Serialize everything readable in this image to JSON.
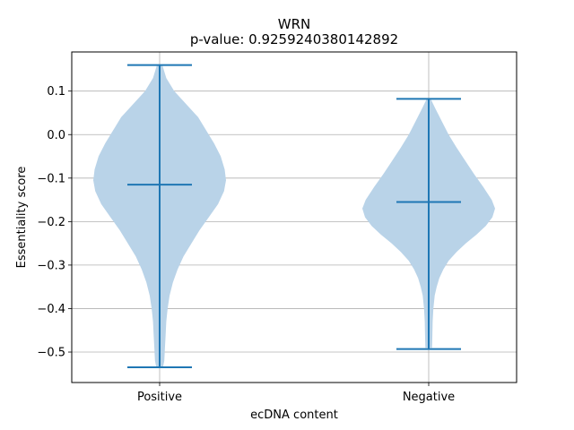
{
  "chart_data": {
    "type": "violin",
    "title": "WRN",
    "subtitle": "p-value: 0.9259240380142892",
    "xlabel": "ecDNA content",
    "ylabel": "Essentiality score",
    "categories": [
      "Positive",
      "Negative"
    ],
    "ylim": [
      -0.57,
      0.19
    ],
    "yticks": [
      0.1,
      0.0,
      -0.1,
      -0.2,
      -0.3,
      -0.4,
      -0.5
    ],
    "ytick_labels": [
      "0.1",
      "0.0",
      "−0.1",
      "−0.2",
      "−0.3",
      "−0.4",
      "−0.5"
    ],
    "grid": true,
    "colors": {
      "body": "#b9d3e8",
      "line": "#1f77b4"
    },
    "series": [
      {
        "category": "Positive",
        "max": 0.16,
        "median": -0.115,
        "min": -0.535,
        "density": [
          [
            0.16,
            0.04
          ],
          [
            0.13,
            0.1
          ],
          [
            0.1,
            0.22
          ],
          [
            0.07,
            0.4
          ],
          [
            0.04,
            0.58
          ],
          [
            0.01,
            0.7
          ],
          [
            -0.02,
            0.82
          ],
          [
            -0.05,
            0.92
          ],
          [
            -0.08,
            0.98
          ],
          [
            -0.105,
            1.0
          ],
          [
            -0.13,
            0.97
          ],
          [
            -0.16,
            0.88
          ],
          [
            -0.19,
            0.74
          ],
          [
            -0.22,
            0.6
          ],
          [
            -0.25,
            0.48
          ],
          [
            -0.28,
            0.36
          ],
          [
            -0.31,
            0.27
          ],
          [
            -0.34,
            0.2
          ],
          [
            -0.37,
            0.15
          ],
          [
            -0.4,
            0.12
          ],
          [
            -0.43,
            0.1
          ],
          [
            -0.46,
            0.09
          ],
          [
            -0.49,
            0.08
          ],
          [
            -0.52,
            0.07
          ],
          [
            -0.535,
            0.05
          ]
        ]
      },
      {
        "category": "Negative",
        "max": 0.082,
        "median": -0.155,
        "min": -0.493,
        "density": [
          [
            0.082,
            0.03
          ],
          [
            0.06,
            0.1
          ],
          [
            0.03,
            0.2
          ],
          [
            0.0,
            0.3
          ],
          [
            -0.03,
            0.42
          ],
          [
            -0.06,
            0.55
          ],
          [
            -0.09,
            0.68
          ],
          [
            -0.12,
            0.82
          ],
          [
            -0.15,
            0.95
          ],
          [
            -0.17,
            1.0
          ],
          [
            -0.19,
            0.96
          ],
          [
            -0.21,
            0.86
          ],
          [
            -0.23,
            0.72
          ],
          [
            -0.25,
            0.56
          ],
          [
            -0.27,
            0.42
          ],
          [
            -0.29,
            0.3
          ],
          [
            -0.31,
            0.22
          ],
          [
            -0.33,
            0.16
          ],
          [
            -0.35,
            0.12
          ],
          [
            -0.37,
            0.09
          ],
          [
            -0.4,
            0.07
          ],
          [
            -0.43,
            0.06
          ],
          [
            -0.46,
            0.055
          ],
          [
            -0.49,
            0.05
          ]
        ]
      }
    ]
  }
}
